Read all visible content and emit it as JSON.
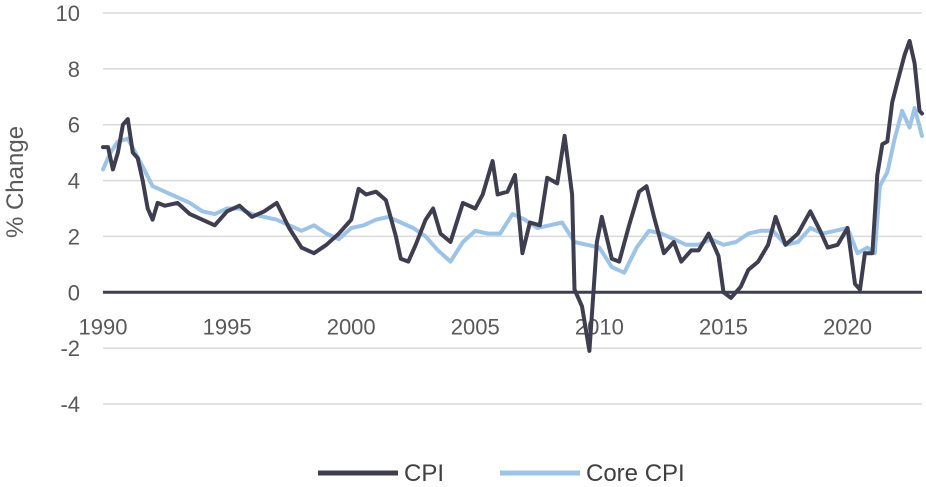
{
  "chart_data": {
    "type": "line",
    "title": "",
    "xlabel": "",
    "ylabel": "% Change",
    "xlim": [
      1990,
      2023
    ],
    "ylim": [
      -4,
      10
    ],
    "x_ticks": [
      1990,
      1995,
      2000,
      2005,
      2010,
      2015,
      2020
    ],
    "y_ticks": [
      -4,
      -2,
      0,
      2,
      4,
      6,
      8,
      10
    ],
    "grid": "horizontal",
    "legend": "bottom",
    "series": [
      {
        "name": "CPI",
        "color": "#3f3e50",
        "points": [
          [
            1990.0,
            5.2
          ],
          [
            1990.2,
            5.2
          ],
          [
            1990.4,
            4.4
          ],
          [
            1990.6,
            5.0
          ],
          [
            1990.8,
            6.0
          ],
          [
            1991.0,
            6.2
          ],
          [
            1991.2,
            5.0
          ],
          [
            1991.4,
            4.8
          ],
          [
            1991.6,
            4.0
          ],
          [
            1991.8,
            3.0
          ],
          [
            1992.0,
            2.6
          ],
          [
            1992.2,
            3.2
          ],
          [
            1992.5,
            3.1
          ],
          [
            1993.0,
            3.2
          ],
          [
            1993.5,
            2.8
          ],
          [
            1994.0,
            2.6
          ],
          [
            1994.5,
            2.4
          ],
          [
            1995.0,
            2.9
          ],
          [
            1995.5,
            3.1
          ],
          [
            1996.0,
            2.7
          ],
          [
            1996.5,
            2.9
          ],
          [
            1997.0,
            3.2
          ],
          [
            1997.5,
            2.3
          ],
          [
            1998.0,
            1.6
          ],
          [
            1998.5,
            1.4
          ],
          [
            1999.0,
            1.7
          ],
          [
            1999.5,
            2.1
          ],
          [
            2000.0,
            2.6
          ],
          [
            2000.3,
            3.7
          ],
          [
            2000.6,
            3.5
          ],
          [
            2001.0,
            3.6
          ],
          [
            2001.4,
            3.3
          ],
          [
            2001.8,
            2.0
          ],
          [
            2002.0,
            1.2
          ],
          [
            2002.3,
            1.1
          ],
          [
            2002.6,
            1.7
          ],
          [
            2003.0,
            2.6
          ],
          [
            2003.3,
            3.0
          ],
          [
            2003.6,
            2.1
          ],
          [
            2004.0,
            1.8
          ],
          [
            2004.5,
            3.2
          ],
          [
            2005.0,
            3.0
          ],
          [
            2005.3,
            3.5
          ],
          [
            2005.7,
            4.7
          ],
          [
            2005.9,
            3.5
          ],
          [
            2006.3,
            3.6
          ],
          [
            2006.6,
            4.2
          ],
          [
            2006.9,
            1.4
          ],
          [
            2007.2,
            2.5
          ],
          [
            2007.6,
            2.4
          ],
          [
            2007.9,
            4.1
          ],
          [
            2008.3,
            3.9
          ],
          [
            2008.6,
            5.6
          ],
          [
            2008.9,
            3.5
          ],
          [
            2009.0,
            0.1
          ],
          [
            2009.3,
            -0.5
          ],
          [
            2009.6,
            -2.1
          ],
          [
            2009.9,
            1.8
          ],
          [
            2010.1,
            2.7
          ],
          [
            2010.5,
            1.2
          ],
          [
            2010.8,
            1.1
          ],
          [
            2011.2,
            2.4
          ],
          [
            2011.6,
            3.6
          ],
          [
            2011.9,
            3.8
          ],
          [
            2012.2,
            2.7
          ],
          [
            2012.6,
            1.4
          ],
          [
            2013.0,
            1.8
          ],
          [
            2013.3,
            1.1
          ],
          [
            2013.7,
            1.5
          ],
          [
            2014.0,
            1.5
          ],
          [
            2014.4,
            2.1
          ],
          [
            2014.8,
            1.3
          ],
          [
            2015.0,
            0.0
          ],
          [
            2015.3,
            -0.2
          ],
          [
            2015.7,
            0.2
          ],
          [
            2016.0,
            0.8
          ],
          [
            2016.4,
            1.1
          ],
          [
            2016.8,
            1.7
          ],
          [
            2017.1,
            2.7
          ],
          [
            2017.5,
            1.7
          ],
          [
            2018.0,
            2.1
          ],
          [
            2018.5,
            2.9
          ],
          [
            2018.9,
            2.2
          ],
          [
            2019.2,
            1.6
          ],
          [
            2019.6,
            1.7
          ],
          [
            2020.0,
            2.3
          ],
          [
            2020.3,
            0.3
          ],
          [
            2020.5,
            0.1
          ],
          [
            2020.7,
            1.4
          ],
          [
            2021.0,
            1.4
          ],
          [
            2021.2,
            4.2
          ],
          [
            2021.4,
            5.3
          ],
          [
            2021.6,
            5.4
          ],
          [
            2021.8,
            6.8
          ],
          [
            2022.0,
            7.5
          ],
          [
            2022.3,
            8.5
          ],
          [
            2022.5,
            9.0
          ],
          [
            2022.7,
            8.2
          ],
          [
            2022.9,
            6.5
          ],
          [
            2023.0,
            6.4
          ]
        ]
      },
      {
        "name": "Core CPI",
        "color": "#9dc3e6",
        "points": [
          [
            1990.0,
            4.4
          ],
          [
            1990.3,
            5.0
          ],
          [
            1990.6,
            5.4
          ],
          [
            1991.0,
            5.5
          ],
          [
            1991.3,
            5.0
          ],
          [
            1991.6,
            4.5
          ],
          [
            1992.0,
            3.8
          ],
          [
            1992.5,
            3.6
          ],
          [
            1993.0,
            3.4
          ],
          [
            1993.5,
            3.2
          ],
          [
            1994.0,
            2.9
          ],
          [
            1994.5,
            2.8
          ],
          [
            1995.0,
            3.0
          ],
          [
            1995.5,
            3.0
          ],
          [
            1996.0,
            2.8
          ],
          [
            1996.5,
            2.7
          ],
          [
            1997.0,
            2.6
          ],
          [
            1997.5,
            2.4
          ],
          [
            1998.0,
            2.2
          ],
          [
            1998.5,
            2.4
          ],
          [
            1999.0,
            2.1
          ],
          [
            1999.5,
            1.9
          ],
          [
            2000.0,
            2.3
          ],
          [
            2000.5,
            2.4
          ],
          [
            2001.0,
            2.6
          ],
          [
            2001.5,
            2.7
          ],
          [
            2002.0,
            2.5
          ],
          [
            2002.5,
            2.3
          ],
          [
            2003.0,
            2.0
          ],
          [
            2003.5,
            1.5
          ],
          [
            2004.0,
            1.1
          ],
          [
            2004.5,
            1.8
          ],
          [
            2005.0,
            2.2
          ],
          [
            2005.5,
            2.1
          ],
          [
            2006.0,
            2.1
          ],
          [
            2006.5,
            2.8
          ],
          [
            2007.0,
            2.6
          ],
          [
            2007.5,
            2.3
          ],
          [
            2008.0,
            2.4
          ],
          [
            2008.5,
            2.5
          ],
          [
            2009.0,
            1.8
          ],
          [
            2009.5,
            1.7
          ],
          [
            2010.0,
            1.6
          ],
          [
            2010.5,
            0.9
          ],
          [
            2011.0,
            0.7
          ],
          [
            2011.5,
            1.6
          ],
          [
            2012.0,
            2.2
          ],
          [
            2012.5,
            2.1
          ],
          [
            2013.0,
            1.9
          ],
          [
            2013.5,
            1.7
          ],
          [
            2014.0,
            1.7
          ],
          [
            2014.5,
            1.9
          ],
          [
            2015.0,
            1.7
          ],
          [
            2015.5,
            1.8
          ],
          [
            2016.0,
            2.1
          ],
          [
            2016.5,
            2.2
          ],
          [
            2017.0,
            2.2
          ],
          [
            2017.5,
            1.7
          ],
          [
            2018.0,
            1.8
          ],
          [
            2018.5,
            2.3
          ],
          [
            2019.0,
            2.1
          ],
          [
            2019.5,
            2.2
          ],
          [
            2020.0,
            2.3
          ],
          [
            2020.4,
            1.4
          ],
          [
            2020.8,
            1.6
          ],
          [
            2021.1,
            1.4
          ],
          [
            2021.3,
            3.8
          ],
          [
            2021.6,
            4.3
          ],
          [
            2021.9,
            5.5
          ],
          [
            2022.2,
            6.5
          ],
          [
            2022.5,
            5.9
          ],
          [
            2022.7,
            6.6
          ],
          [
            2023.0,
            5.6
          ]
        ]
      }
    ]
  }
}
